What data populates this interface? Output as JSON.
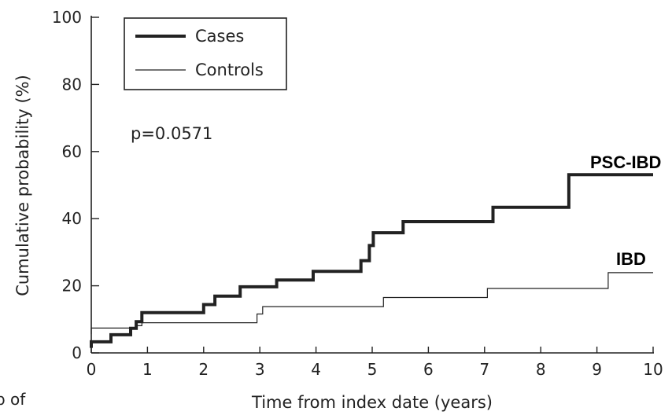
{
  "chart_data": {
    "type": "line",
    "step": true,
    "xlabel": "Time from index date (years)",
    "ylabel": "Cumulative probability (%)",
    "xlim": [
      0,
      10
    ],
    "ylim": [
      0,
      100
    ],
    "xticks": [
      "0",
      "1",
      "2",
      "3",
      "4",
      "5",
      "6",
      "7",
      "8",
      "9",
      "10"
    ],
    "yticks": [
      "0",
      "20",
      "40",
      "60",
      "80",
      "100"
    ],
    "grid": false,
    "legend_position": "top-left",
    "annotation": "p=0.0571",
    "series": [
      {
        "name": "Cases",
        "label": "PSC-IBD",
        "line": "thick",
        "points": [
          [
            0,
            1.5
          ],
          [
            0,
            3.3
          ],
          [
            0.35,
            3.3
          ],
          [
            0.35,
            5.4
          ],
          [
            0.7,
            5.4
          ],
          [
            0.7,
            7.3
          ],
          [
            0.8,
            7.3
          ],
          [
            0.8,
            9.3
          ],
          [
            0.9,
            9.3
          ],
          [
            0.9,
            12.0
          ],
          [
            2.0,
            12.0
          ],
          [
            2.0,
            14.4
          ],
          [
            2.2,
            14.4
          ],
          [
            2.2,
            16.9
          ],
          [
            2.65,
            16.9
          ],
          [
            2.65,
            19.7
          ],
          [
            3.3,
            19.7
          ],
          [
            3.3,
            21.7
          ],
          [
            3.95,
            21.7
          ],
          [
            3.95,
            24.3
          ],
          [
            4.8,
            24.3
          ],
          [
            4.8,
            27.5
          ],
          [
            4.95,
            27.5
          ],
          [
            4.95,
            32.0
          ],
          [
            5.02,
            32.0
          ],
          [
            5.02,
            35.8
          ],
          [
            5.55,
            35.8
          ],
          [
            5.55,
            39.1
          ],
          [
            7.15,
            39.1
          ],
          [
            7.15,
            43.4
          ],
          [
            8.5,
            43.4
          ],
          [
            8.5,
            53.1
          ],
          [
            10,
            53.1
          ]
        ]
      },
      {
        "name": "Controls",
        "label": "IBD",
        "line": "thin",
        "points": [
          [
            0,
            5.6
          ],
          [
            0,
            7.4
          ],
          [
            0.8,
            7.4
          ],
          [
            0.8,
            8.1
          ],
          [
            0.9,
            8.1
          ],
          [
            0.9,
            9.0
          ],
          [
            2.95,
            9.0
          ],
          [
            2.95,
            11.6
          ],
          [
            3.05,
            11.6
          ],
          [
            3.05,
            13.8
          ],
          [
            5.2,
            13.8
          ],
          [
            5.2,
            16.5
          ],
          [
            7.05,
            16.5
          ],
          [
            7.05,
            19.2
          ],
          [
            9.2,
            19.2
          ],
          [
            9.2,
            23.9
          ],
          [
            10,
            23.9
          ]
        ]
      }
    ]
  },
  "margin_fragment": "p of"
}
